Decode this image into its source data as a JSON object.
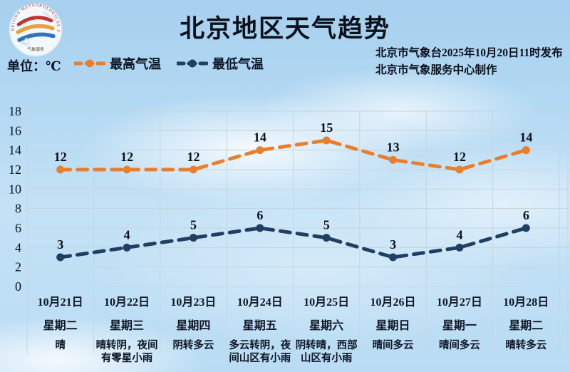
{
  "page": {
    "title": "北京地区天气趋势",
    "unit_label": "单位：℃",
    "issued_line1": "北京市气象台2025年10月20日11时发布",
    "issued_line2": "北京市气象服务中心制作"
  },
  "logo": {
    "ring_text": "BEIJING METEOROLOGICAL SERVICE",
    "bottom_text": "气象服务"
  },
  "legend": {
    "high_label": "最高气温",
    "low_label": "最低气温"
  },
  "colors": {
    "high": "#e87f2e",
    "low": "#1f3f63",
    "grid": "#c7d4de",
    "text": "#0b111c"
  },
  "chart_data": {
    "type": "line",
    "title": "北京地区天气趋势",
    "xlabel": "",
    "ylabel": "单位：℃",
    "categories": [
      "10月21日",
      "10月22日",
      "10月23日",
      "10月24日",
      "10月25日",
      "10月26日",
      "10月27日",
      "10月28日"
    ],
    "series": [
      {
        "name": "最高气温",
        "color": "#e87f2e",
        "values": [
          12,
          12,
          12,
          14,
          15,
          13,
          12,
          14
        ]
      },
      {
        "name": "最低气温",
        "color": "#1f3f63",
        "values": [
          3,
          4,
          5,
          6,
          5,
          3,
          4,
          6
        ]
      }
    ],
    "ylim": [
      0,
      18
    ],
    "ytick_step": 2,
    "grid": true,
    "line_style": "dashed",
    "legend_position": "top-left"
  },
  "days": [
    {
      "date": "10月21日",
      "weekday": "星期二",
      "weather": "晴"
    },
    {
      "date": "10月22日",
      "weekday": "星期三",
      "weather": "晴转阴，夜间有零星小雨"
    },
    {
      "date": "10月23日",
      "weekday": "星期四",
      "weather": "阴转多云"
    },
    {
      "date": "10月24日",
      "weekday": "星期五",
      "weather": "多云转阴，夜间山区有小雨"
    },
    {
      "date": "10月25日",
      "weekday": "星期六",
      "weather": "阴转晴，西部山区有小雨"
    },
    {
      "date": "10月26日",
      "weekday": "星期日",
      "weather": "晴间多云"
    },
    {
      "date": "10月27日",
      "weekday": "星期一",
      "weather": "晴间多云"
    },
    {
      "date": "10月28日",
      "weekday": "星期二",
      "weather": "晴转多云"
    }
  ]
}
